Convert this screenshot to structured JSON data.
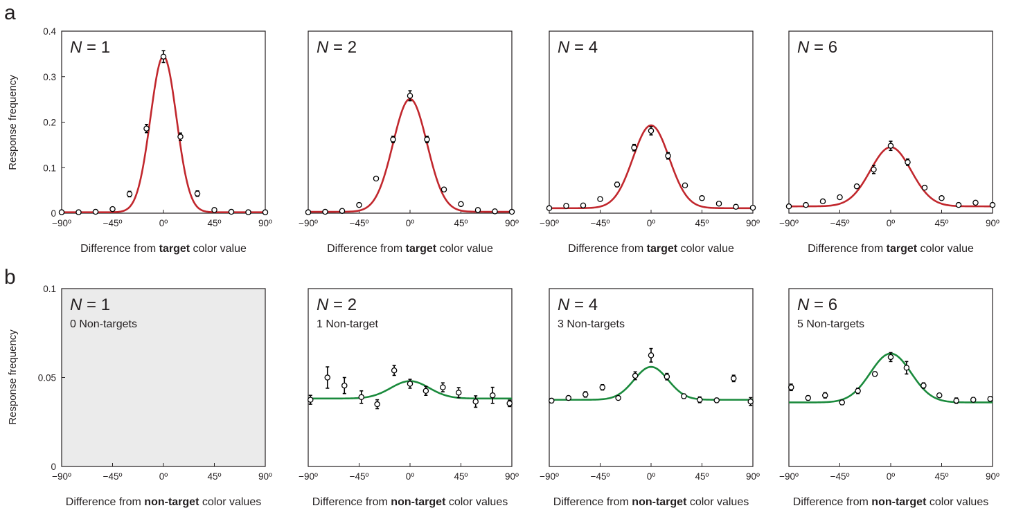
{
  "figure": {
    "panel_letters": [
      "a",
      "b"
    ],
    "row_a_ylabel": "Response frequency",
    "row_b_ylabel": "Response frequency",
    "colors": {
      "fit_a": "#c1272d",
      "fit_b": "#1a8a3c",
      "blank_panel": "#ebebeb",
      "axis": "#231f20"
    }
  },
  "chart_data": [
    {
      "type": "line",
      "row": "a",
      "col": 0,
      "panel_label": "N = 1",
      "panel_sublabel": "",
      "xlabel_pre": "Difference from ",
      "xlabel_bold": "target",
      "xlabel_post": " color value",
      "xlim": [
        -90,
        90
      ],
      "ylim": [
        0,
        0.4
      ],
      "xticks": [
        -90,
        -45,
        0,
        45,
        90
      ],
      "xtick_labels": [
        "−90º",
        "−45º",
        "0º",
        "45º",
        "90º"
      ],
      "yticks": [
        0,
        0.1,
        0.2,
        0.3,
        0.4
      ],
      "ytick_labels": [
        "0",
        "0.1",
        "0.2",
        "0.3",
        "0.4"
      ],
      "points": {
        "x": [
          -90,
          -75,
          -60,
          -45,
          -30,
          -15,
          0,
          15,
          30,
          45,
          60,
          75,
          90
        ],
        "y": [
          0.002,
          0.002,
          0.003,
          0.009,
          0.042,
          0.186,
          0.344,
          0.168,
          0.043,
          0.007,
          0.003,
          0.002,
          0.002
        ],
        "err": [
          0.001,
          0.001,
          0.001,
          0.003,
          0.006,
          0.009,
          0.013,
          0.008,
          0.006,
          0.002,
          0.001,
          0.001,
          0.001
        ]
      },
      "fit": {
        "name": "",
        "baseline": 0.002,
        "amplitude": 0.343,
        "sigma": 11.5
      },
      "blank": false
    },
    {
      "type": "line",
      "row": "a",
      "col": 1,
      "panel_label": "N = 2",
      "panel_sublabel": "",
      "xlabel_pre": "Difference from ",
      "xlabel_bold": "target",
      "xlabel_post": " color value",
      "xlim": [
        -90,
        90
      ],
      "ylim": [
        0,
        0.4
      ],
      "xticks": [
        -90,
        -45,
        0,
        45,
        90
      ],
      "xtick_labels": [
        "−90º",
        "−45º",
        "0º",
        "45º",
        "90º"
      ],
      "yticks": [],
      "ytick_labels": [],
      "points": {
        "x": [
          -90,
          -75,
          -60,
          -45,
          -30,
          -15,
          0,
          15,
          30,
          45,
          60,
          75,
          90
        ],
        "y": [
          0.002,
          0.003,
          0.005,
          0.018,
          0.076,
          0.162,
          0.258,
          0.162,
          0.052,
          0.02,
          0.007,
          0.004,
          0.003
        ],
        "err": [
          0.001,
          0.001,
          0.002,
          0.003,
          0.004,
          0.007,
          0.011,
          0.007,
          0.004,
          0.003,
          0.002,
          0.001,
          0.001
        ]
      },
      "fit": {
        "name": "",
        "baseline": 0.003,
        "amplitude": 0.248,
        "sigma": 15
      },
      "blank": false
    },
    {
      "type": "line",
      "row": "a",
      "col": 2,
      "panel_label": "N = 4",
      "panel_sublabel": "",
      "xlabel_pre": "Difference from ",
      "xlabel_bold": "target",
      "xlabel_post": " color value",
      "xlim": [
        -90,
        90
      ],
      "ylim": [
        0,
        0.4
      ],
      "xticks": [
        -90,
        -45,
        0,
        45,
        90
      ],
      "xtick_labels": [
        "−90º",
        "−45º",
        "0º",
        "45º",
        "90º"
      ],
      "yticks": [],
      "ytick_labels": [],
      "points": {
        "x": [
          -90,
          -75,
          -60,
          -45,
          -30,
          -15,
          0,
          15,
          30,
          45,
          60,
          75,
          90
        ],
        "y": [
          0.011,
          0.016,
          0.017,
          0.031,
          0.063,
          0.144,
          0.181,
          0.126,
          0.061,
          0.033,
          0.021,
          0.014,
          0.012
        ],
        "err": [
          0.002,
          0.002,
          0.003,
          0.004,
          0.005,
          0.007,
          0.009,
          0.007,
          0.004,
          0.004,
          0.003,
          0.002,
          0.002
        ]
      },
      "fit": {
        "name": "",
        "baseline": 0.011,
        "amplitude": 0.182,
        "sigma": 16
      },
      "blank": false
    },
    {
      "type": "line",
      "row": "a",
      "col": 3,
      "panel_label": "N = 6",
      "panel_sublabel": "",
      "xlabel_pre": "Difference from ",
      "xlabel_bold": "target",
      "xlabel_post": " color value",
      "xlim": [
        -90,
        90
      ],
      "ylim": [
        0,
        0.4
      ],
      "xticks": [
        -90,
        -45,
        0,
        45,
        90
      ],
      "xtick_labels": [
        "−90º",
        "−45º",
        "0º",
        "45º",
        "90º"
      ],
      "yticks": [],
      "ytick_labels": [],
      "points": {
        "x": [
          -90,
          -75,
          -60,
          -45,
          -30,
          -15,
          0,
          15,
          30,
          45,
          60,
          75,
          90
        ],
        "y": [
          0.015,
          0.018,
          0.026,
          0.035,
          0.059,
          0.096,
          0.148,
          0.112,
          0.056,
          0.033,
          0.018,
          0.023,
          0.018
        ],
        "err": [
          0.002,
          0.002,
          0.003,
          0.004,
          0.004,
          0.009,
          0.01,
          0.007,
          0.004,
          0.003,
          0.002,
          0.003,
          0.002
        ]
      },
      "fit": {
        "name": "",
        "baseline": 0.015,
        "amplitude": 0.13,
        "sigma": 18
      },
      "blank": false
    },
    {
      "type": "line",
      "row": "b",
      "col": 0,
      "panel_label": "N = 1",
      "panel_sublabel": "0 Non-targets",
      "xlabel_pre": "Difference from ",
      "xlabel_bold": "non-target",
      "xlabel_post": " color values",
      "xlim": [
        -90,
        90
      ],
      "ylim": [
        0,
        0.1
      ],
      "xticks": [
        -90,
        -45,
        0,
        45,
        90
      ],
      "xtick_labels": [
        "−90º",
        "−45º",
        "0º",
        "45º",
        "90º"
      ],
      "yticks": [
        0,
        0.05,
        0.1
      ],
      "ytick_labels": [
        "0",
        "0.05",
        "0.1"
      ],
      "points": {
        "x": [],
        "y": [],
        "err": []
      },
      "fit": null,
      "blank": true
    },
    {
      "type": "line",
      "row": "b",
      "col": 1,
      "panel_label": "N = 2",
      "panel_sublabel": "1 Non-target",
      "xlabel_pre": "Difference from ",
      "xlabel_bold": "non-target",
      "xlabel_post": " color values",
      "xlim": [
        -90,
        90
      ],
      "ylim": [
        0,
        0.1
      ],
      "xticks": [
        -90,
        -45,
        0,
        45,
        90
      ],
      "xtick_labels": [
        "−90º",
        "−45º",
        "0º",
        "45º",
        "90º"
      ],
      "yticks": [],
      "ytick_labels": [],
      "points": {
        "x": [
          -88,
          -73,
          -58,
          -43,
          -29,
          -14,
          0,
          14,
          29,
          43,
          58,
          73,
          88
        ],
        "y": [
          0.0375,
          0.05,
          0.0455,
          0.039,
          0.035,
          0.054,
          0.0465,
          0.0425,
          0.0445,
          0.0415,
          0.0365,
          0.04,
          0.0355
        ],
        "err": [
          0.0025,
          0.006,
          0.0045,
          0.0035,
          0.0025,
          0.0028,
          0.0025,
          0.0025,
          0.0025,
          0.0028,
          0.0032,
          0.0045,
          0.0018
        ]
      },
      "fit": {
        "name": "",
        "baseline": 0.0382,
        "amplitude": 0.0098,
        "sigma": 17
      },
      "blank": false
    },
    {
      "type": "line",
      "row": "b",
      "col": 2,
      "panel_label": "N = 4",
      "panel_sublabel": "3 Non-targets",
      "xlabel_pre": "Difference from ",
      "xlabel_bold": "non-target",
      "xlabel_post": " color values",
      "xlim": [
        -90,
        90
      ],
      "ylim": [
        0,
        0.1
      ],
      "xticks": [
        -90,
        -45,
        0,
        45,
        90
      ],
      "xtick_labels": [
        "−90º",
        "−45º",
        "0º",
        "45º",
        "90º"
      ],
      "yticks": [],
      "ytick_labels": [],
      "points": {
        "x": [
          -88,
          -73,
          -58,
          -43,
          -29,
          -14,
          0,
          14,
          29,
          43,
          58,
          73,
          88
        ],
        "y": [
          0.037,
          0.0385,
          0.0405,
          0.0445,
          0.0385,
          0.051,
          0.0625,
          0.0505,
          0.0395,
          0.0375,
          0.0372,
          0.0495,
          0.0365
        ],
        "err": [
          0.0012,
          0.001,
          0.0015,
          0.0015,
          0.0008,
          0.0022,
          0.0038,
          0.0018,
          0.0012,
          0.0016,
          0.0012,
          0.0018,
          0.0022
        ]
      },
      "fit": {
        "name": "",
        "baseline": 0.0375,
        "amplitude": 0.0185,
        "sigma": 15
      },
      "blank": false
    },
    {
      "type": "line",
      "row": "b",
      "col": 3,
      "panel_label": "N = 6",
      "panel_sublabel": "5 Non-targets",
      "xlabel_pre": "Difference from ",
      "xlabel_bold": "non-target",
      "xlabel_post": " color values",
      "xlim": [
        -90,
        90
      ],
      "ylim": [
        0,
        0.1
      ],
      "xticks": [
        -90,
        -45,
        0,
        45,
        90
      ],
      "xtick_labels": [
        "−90º",
        "−45º",
        "0º",
        "45º",
        "90º"
      ],
      "yticks": [],
      "ytick_labels": [],
      "points": {
        "x": [
          -88,
          -73,
          -58,
          -43,
          -29,
          -14,
          0,
          14,
          29,
          43,
          58,
          73,
          88
        ],
        "y": [
          0.0445,
          0.0385,
          0.04,
          0.036,
          0.0425,
          0.052,
          0.0615,
          0.0555,
          0.0455,
          0.04,
          0.037,
          0.0375,
          0.038
        ],
        "err": [
          0.0018,
          0.0012,
          0.0015,
          0.0012,
          0.0015,
          0.0012,
          0.0025,
          0.0035,
          0.0015,
          0.001,
          0.0015,
          0.0012,
          0.0012
        ]
      },
      "fit": {
        "name": "",
        "baseline": 0.036,
        "amplitude": 0.0275,
        "sigma": 18
      },
      "blank": false
    }
  ]
}
